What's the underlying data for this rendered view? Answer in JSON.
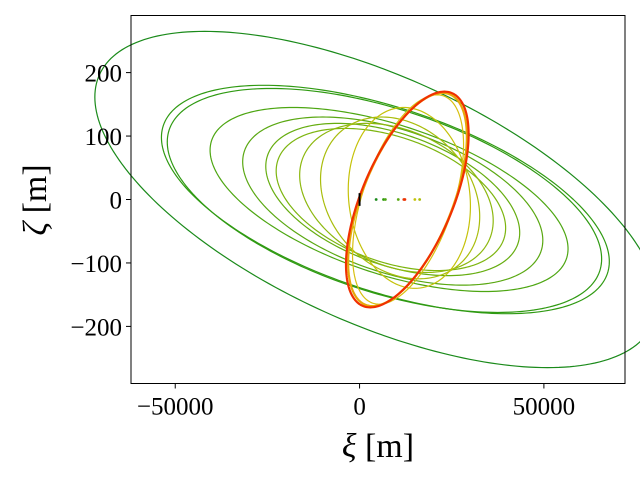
{
  "chart_data": {
    "type": "line",
    "title": "",
    "xlabel": {
      "symbol": "ξ",
      "unit": " [m]"
    },
    "ylabel": {
      "symbol": "ζ",
      "unit": " [m]"
    },
    "xlim": [
      -62000,
      72000
    ],
    "ylim": [
      -290,
      290
    ],
    "x_ticks": [
      {
        "value": -50000,
        "label": "−50000"
      },
      {
        "value": 0,
        "label": "0"
      },
      {
        "value": 50000,
        "label": "50000"
      }
    ],
    "y_ticks": [
      {
        "value": 200,
        "label": "200"
      },
      {
        "value": 100,
        "label": "100"
      },
      {
        "value": 0,
        "label": "0"
      },
      {
        "value": -100,
        "label": "−100"
      },
      {
        "value": -200,
        "label": "−200"
      }
    ],
    "grid": false,
    "legend": "none",
    "series": [
      {
        "color": "#1a8a1a",
        "cx": 3000,
        "cy": 0,
        "xmin": -56000,
        "xmax": 65000,
        "zmax": 265,
        "zmin": -265,
        "x_at_zmax": -42000,
        "x_at_zmin": 49000
      },
      {
        "color": "#2f9a12",
        "cx": 6000,
        "cy": 0,
        "xmin": -44000,
        "xmax": 58000,
        "zmax": 180,
        "zmin": -180,
        "x_at_zmax": -26000,
        "x_at_zmin": 38000
      },
      {
        "color": "#2f9a12",
        "cx": 6500,
        "cy": 0,
        "xmin": -43500,
        "xmax": 57000,
        "zmax": 175,
        "zmin": -178,
        "x_at_zmax": -24000,
        "x_at_zmin": 37000
      },
      {
        "color": "#4da612",
        "cx": 6500,
        "cy": 0,
        "xmin": -33000,
        "xmax": 49000,
        "zmax": 145,
        "zmin": -145,
        "x_at_zmax": -18000,
        "x_at_zmin": 31000
      },
      {
        "color": "#5aa812",
        "cx": 8000,
        "cy": 0,
        "xmin": -27000,
        "xmax": 45000,
        "zmax": 130,
        "zmin": -135,
        "x_at_zmax": -10000,
        "x_at_zmin": 27000
      },
      {
        "color": "#66ad10",
        "cx": 7500,
        "cy": 0,
        "xmin": -22000,
        "xmax": 40000,
        "zmax": 120,
        "zmin": -120,
        "x_at_zmax": -6000,
        "x_at_zmin": 22000
      },
      {
        "color": "#7db510",
        "cx": 8000,
        "cy": 0,
        "xmin": -20000,
        "xmax": 37000,
        "zmax": 112,
        "zmin": -112,
        "x_at_zmax": -4000,
        "x_at_zmin": 20000
      },
      {
        "color": "#8db80f",
        "cx": 9500,
        "cy": 0,
        "xmin": -15000,
        "xmax": 35000,
        "zmax": 120,
        "zmin": -115,
        "x_at_zmax": 2000,
        "x_at_zmin": 18000
      },
      {
        "color": "#a9bd0c",
        "cx": 12000,
        "cy": 0,
        "xmin": -10000,
        "xmax": 32000,
        "zmax": 130,
        "zmin": -125,
        "x_at_zmax": 6000,
        "x_at_zmin": 19000
      },
      {
        "color": "#c5c20a",
        "cx": 14000,
        "cy": 0,
        "xmin": -3000,
        "xmax": 30000,
        "zmax": 145,
        "zmin": -140,
        "x_at_zmax": 12000,
        "x_at_zmin": 16000
      },
      {
        "color": "#d8c010",
        "cx": 13000,
        "cy": 0,
        "xmin": 300,
        "xmax": 26000,
        "zmax": 165,
        "zmin": -165,
        "x_at_zmax": 21000,
        "x_at_zmin": 4000
      },
      {
        "color": "#e6a80a",
        "cx": 13000,
        "cy": 0,
        "xmin": 0,
        "xmax": 26000,
        "zmax": 168,
        "zmin": -168,
        "x_at_zmax": 22500,
        "x_at_zmin": 2800
      },
      {
        "color": "#f03000",
        "cx": 13000,
        "cy": 0,
        "xmin": -300,
        "xmax": 26200,
        "zmax": 170,
        "zmin": -170,
        "x_at_zmax": 23000,
        "x_at_zmin": 2500
      }
    ],
    "markers": [
      {
        "x": 0,
        "y": 0,
        "color": "#000000",
        "shape": "vline",
        "height": 20
      },
      {
        "x": 4500,
        "y": 0,
        "color": "#1a8a1a"
      },
      {
        "x": 6500,
        "y": 0,
        "color": "#2f9a12"
      },
      {
        "x": 7000,
        "y": 0,
        "color": "#4da612"
      },
      {
        "x": 10500,
        "y": 0,
        "color": "#5aa812"
      },
      {
        "x": 12000,
        "y": 0,
        "color": "#e04010"
      },
      {
        "x": 12300,
        "y": 0,
        "color": "#f03000"
      },
      {
        "x": 15000,
        "y": 0,
        "color": "#c5c20a"
      },
      {
        "x": 16300,
        "y": 0,
        "color": "#a9bd0c"
      }
    ]
  }
}
